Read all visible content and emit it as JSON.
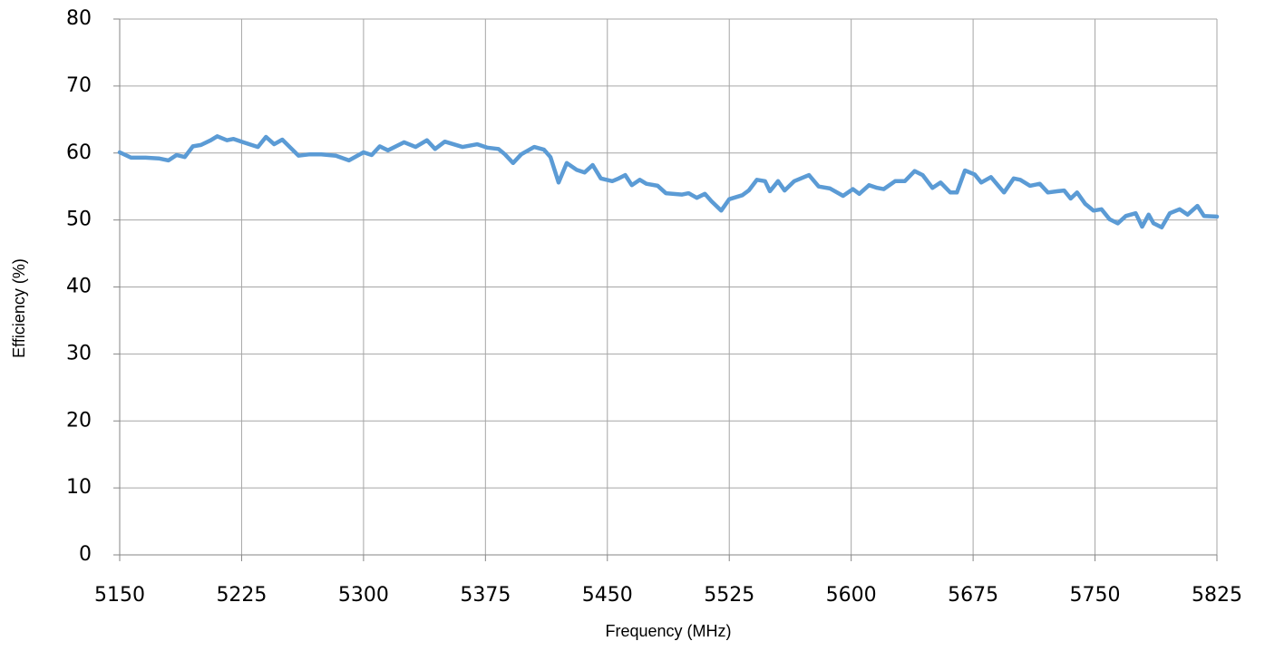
{
  "chart_data": {
    "type": "line",
    "x_label": "Frequency (MHz)",
    "y_label": "Efficiency (%)",
    "xlim": [
      5150,
      5825
    ],
    "xticks": [
      5150,
      5225,
      5300,
      5375,
      5450,
      5525,
      5600,
      5675,
      5750,
      5825
    ],
    "ylim": [
      0,
      80
    ],
    "yticks": [
      0,
      10,
      20,
      30,
      40,
      50,
      60,
      70,
      80
    ],
    "grid": true,
    "series": [
      {
        "color": "#5b9bd5",
        "x": [
          5150,
          5157,
          5166,
          5174,
          5180,
          5185,
          5190,
          5195,
          5200,
          5206,
          5210,
          5216,
          5220,
          5226,
          5235,
          5240,
          5245,
          5250,
          5255,
          5260,
          5267,
          5274,
          5283,
          5291,
          5300,
          5305,
          5310,
          5315,
          5325,
          5332,
          5339,
          5344,
          5350,
          5361,
          5370,
          5376,
          5383,
          5387,
          5392,
          5397,
          5405,
          5411,
          5415,
          5420,
          5425,
          5431,
          5436,
          5441,
          5446,
          5453,
          5457,
          5461,
          5465,
          5470,
          5474,
          5481,
          5486,
          5496,
          5500,
          5505,
          5510,
          5514,
          5520,
          5525,
          5533,
          5537,
          5542,
          5547,
          5550,
          5555,
          5559,
          5565,
          5574,
          5580,
          5587,
          5595,
          5601,
          5605,
          5611,
          5616,
          5620,
          5627,
          5633,
          5639,
          5644,
          5650,
          5655,
          5661,
          5665,
          5670,
          5676,
          5680,
          5686,
          5694,
          5700,
          5704,
          5710,
          5716,
          5721,
          5727,
          5731,
          5735,
          5739,
          5744,
          5749,
          5754,
          5759,
          5764,
          5769,
          5775,
          5779,
          5783,
          5786,
          5791,
          5796,
          5802,
          5807,
          5813,
          5817,
          5825
        ],
        "values": [
          60.1,
          59.3,
          59.3,
          59.2,
          58.9,
          59.7,
          59.4,
          61.0,
          61.2,
          61.9,
          62.5,
          61.9,
          62.1,
          61.6,
          60.9,
          62.4,
          61.3,
          62.0,
          60.8,
          59.6,
          59.8,
          59.8,
          59.6,
          58.9,
          60.1,
          59.7,
          61.0,
          60.4,
          61.6,
          60.9,
          61.9,
          60.6,
          61.7,
          60.9,
          61.3,
          60.8,
          60.6,
          59.8,
          58.5,
          59.8,
          60.9,
          60.5,
          59.4,
          55.6,
          58.5,
          57.5,
          57.1,
          58.2,
          56.2,
          55.8,
          56.2,
          56.7,
          55.2,
          56.0,
          55.4,
          55.1,
          54.0,
          53.8,
          54.0,
          53.3,
          53.9,
          52.8,
          51.4,
          53.1,
          53.7,
          54.4,
          56.0,
          55.8,
          54.3,
          55.8,
          54.4,
          55.8,
          56.7,
          55.0,
          54.7,
          53.6,
          54.6,
          53.9,
          55.2,
          54.8,
          54.6,
          55.8,
          55.8,
          57.3,
          56.7,
          54.8,
          55.6,
          54.1,
          54.1,
          57.4,
          56.8,
          55.6,
          56.4,
          54.1,
          56.2,
          56.0,
          55.1,
          55.4,
          54.1,
          54.3,
          54.4,
          53.2,
          54.1,
          52.4,
          51.4,
          51.6,
          50.1,
          49.5,
          50.6,
          51.0,
          49.0,
          50.8,
          49.5,
          48.9,
          51.0,
          51.6,
          50.8,
          52.1,
          50.6,
          50.5
        ]
      }
    ]
  }
}
